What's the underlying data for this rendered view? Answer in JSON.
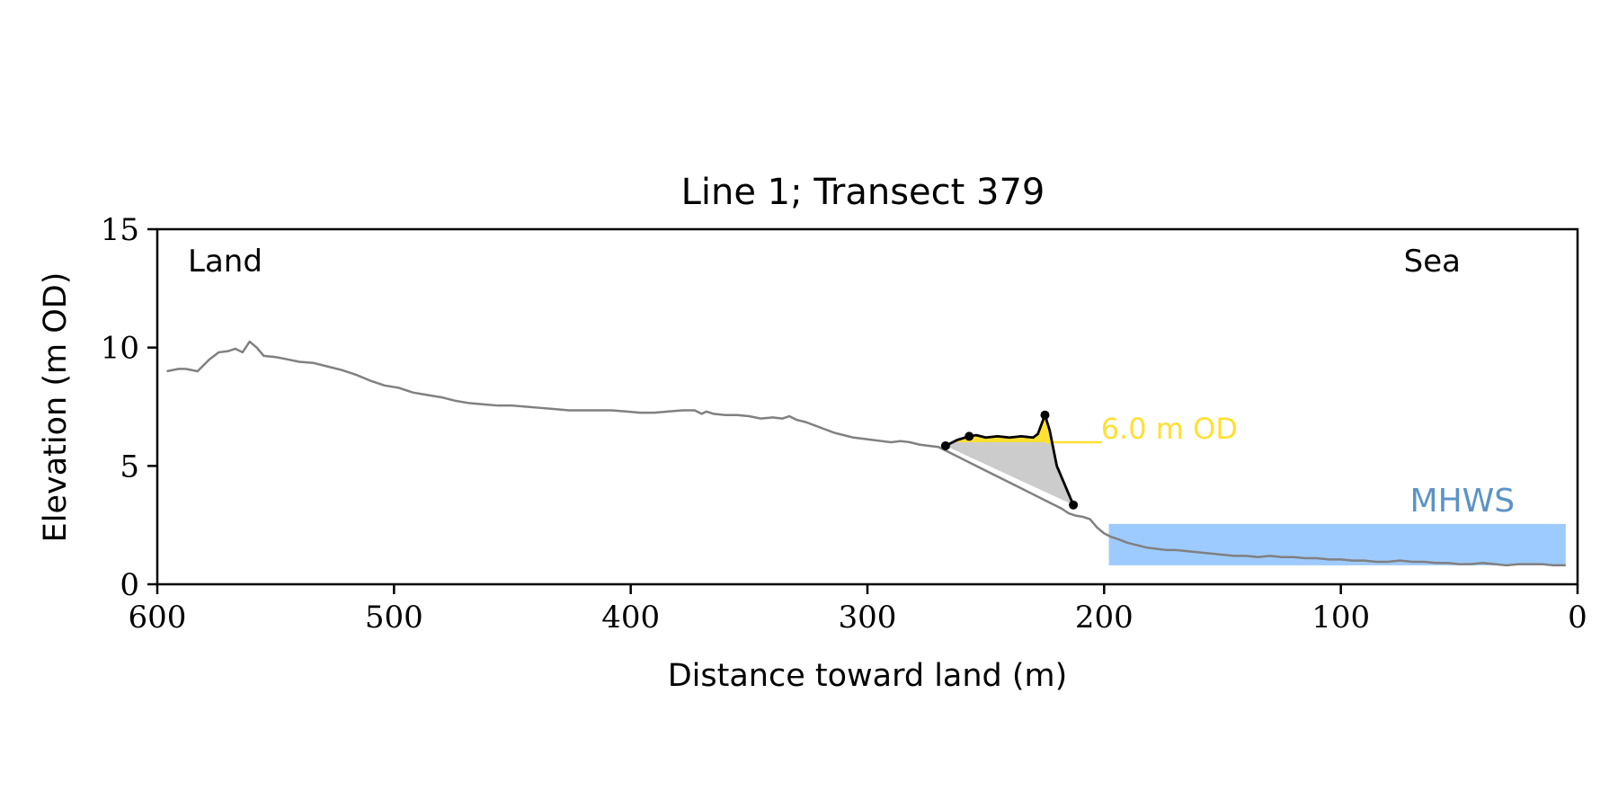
{
  "chart_data": {
    "type": "line",
    "title": "Line 1; Transect 379",
    "xlabel": "Distance toward land (m)",
    "ylabel": "Elevation (m OD)",
    "xlim": [
      600,
      0
    ],
    "ylim": [
      0,
      15
    ],
    "x_ticks": [
      600,
      500,
      400,
      300,
      200,
      100,
      0
    ],
    "y_ticks": [
      0,
      5,
      10,
      15
    ],
    "x_tick_labels": [
      "600",
      "500",
      "400",
      "300",
      "200",
      "100",
      "0"
    ],
    "y_tick_labels": [
      "0",
      "5",
      "10",
      "15"
    ],
    "grid": false,
    "corner_labels": {
      "left": "Land",
      "right": "Sea"
    },
    "profile": {
      "color": "#808080",
      "x": [
        596,
        591,
        588,
        583,
        578,
        574,
        570,
        567,
        564,
        561,
        558,
        555,
        550,
        545,
        540,
        534,
        528,
        522,
        516,
        510,
        504,
        498,
        492,
        486,
        480,
        474,
        468,
        462,
        456,
        450,
        444,
        438,
        432,
        426,
        420,
        414,
        408,
        402,
        396,
        390,
        384,
        378,
        373,
        370,
        368,
        365,
        360,
        355,
        350,
        345,
        340,
        336,
        333,
        330,
        326,
        322,
        318,
        314,
        310,
        306,
        302,
        298,
        294,
        290,
        286,
        282,
        278,
        274,
        270,
        266,
        262,
        258,
        254,
        250,
        246,
        242,
        238,
        234,
        230,
        226,
        222,
        218,
        215,
        212,
        209,
        206,
        203,
        200,
        197,
        194,
        190,
        186,
        182,
        178,
        174,
        170,
        165,
        160,
        155,
        150,
        145,
        140,
        135,
        130,
        125,
        120,
        115,
        110,
        105,
        100,
        95,
        90,
        85,
        80,
        75,
        70,
        65,
        60,
        55,
        50,
        45,
        40,
        35,
        30,
        25,
        20,
        15,
        10,
        5
      ],
      "y": [
        9.0,
        9.1,
        9.1,
        9.0,
        9.5,
        9.8,
        9.85,
        9.95,
        9.8,
        10.25,
        10.0,
        9.65,
        9.6,
        9.5,
        9.4,
        9.35,
        9.2,
        9.05,
        8.85,
        8.6,
        8.4,
        8.3,
        8.1,
        8.0,
        7.9,
        7.75,
        7.65,
        7.6,
        7.55,
        7.55,
        7.5,
        7.45,
        7.4,
        7.35,
        7.35,
        7.35,
        7.35,
        7.3,
        7.25,
        7.25,
        7.3,
        7.35,
        7.35,
        7.2,
        7.3,
        7.2,
        7.15,
        7.15,
        7.1,
        7.0,
        7.05,
        7.0,
        7.1,
        6.95,
        6.85,
        6.7,
        6.55,
        6.4,
        6.3,
        6.2,
        6.15,
        6.1,
        6.05,
        6.0,
        6.05,
        6.0,
        5.9,
        5.85,
        5.8,
        5.6,
        5.4,
        5.2,
        5.0,
        4.8,
        4.6,
        4.4,
        4.2,
        4.0,
        3.8,
        3.6,
        3.4,
        3.2,
        3.0,
        2.9,
        2.85,
        2.75,
        2.4,
        2.15,
        2.0,
        1.9,
        1.75,
        1.65,
        1.55,
        1.5,
        1.45,
        1.45,
        1.4,
        1.35,
        1.3,
        1.25,
        1.2,
        1.2,
        1.15,
        1.2,
        1.15,
        1.15,
        1.1,
        1.1,
        1.05,
        1.05,
        1.0,
        1.0,
        0.95,
        0.95,
        1.0,
        0.95,
        0.95,
        0.9,
        0.9,
        0.85,
        0.85,
        0.9,
        0.85,
        0.8,
        0.85,
        0.85,
        0.85,
        0.8,
        0.8
      ]
    },
    "dune": {
      "color": "#000000",
      "x": [
        267,
        262,
        257,
        254,
        250,
        245,
        240,
        235,
        230,
        228,
        225,
        223,
        220,
        213
      ],
      "y": [
        5.85,
        6.1,
        6.25,
        6.3,
        6.2,
        6.25,
        6.2,
        6.25,
        6.2,
        6.35,
        7.15,
        6.5,
        5.0,
        3.35
      ],
      "marker_points": [
        {
          "x": 267,
          "y": 5.85
        },
        {
          "x": 257,
          "y": 6.25
        },
        {
          "x": 225,
          "y": 7.15
        },
        {
          "x": 213,
          "y": 3.35
        }
      ]
    },
    "dune_volume": {
      "color": "#cccccc",
      "from_x": 267,
      "to_x": 213
    },
    "threshold": {
      "label": "6.0 m OD",
      "value": 6.0,
      "color": "#ffe033",
      "line_x": [
        225,
        201
      ]
    },
    "mhws": {
      "label": "MHWS",
      "label_color": "#5b93c7",
      "fill_color": "#9ecbff",
      "elevation": 2.55,
      "x_range": [
        198,
        5
      ]
    }
  }
}
